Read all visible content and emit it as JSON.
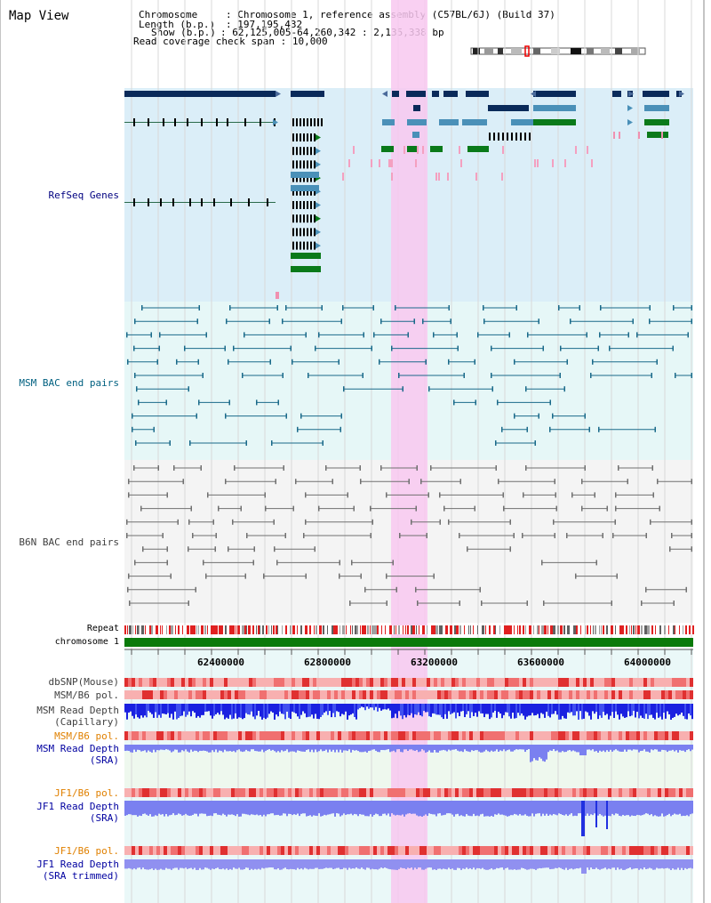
{
  "title": "Map View",
  "info": {
    "chromosome_key": "Chromosome",
    "chromosome_val": "Chromosome 1, reference assembly (C57BL/6J) (Build 37)",
    "length_key": "Length (b.p.)",
    "length_val": "197,195,432",
    "show_key": "Show (b.p.)",
    "show_val": "62,125,005-64,260,342 : 2,135,338 bp",
    "coverage_key": "Read coverage check span",
    "coverage_val": "10,000"
  },
  "tracks": {
    "refseq": "RefSeq Genes",
    "msm_bac": "MSM BAC end pairs",
    "b6n_bac": "B6N BAC end pairs",
    "repeat": "Repeat",
    "chromosome": "chromosome 1",
    "dbsnp": "dbSNP(Mouse)",
    "msm_b6_pol_1": "MSM/B6 pol.",
    "msm_read_depth_cap_1": "MSM Read Depth",
    "msm_read_depth_cap_2": "(Capillary)",
    "msm_b6_pol_2": "MSM/B6 pol.",
    "msm_read_depth_sra_1": "MSM Read Depth",
    "msm_read_depth_sra_2": "(SRA)",
    "jf1_b6_pol_1": "JF1/B6 pol.",
    "jf1_read_depth_sra_1": "JF1 Read Depth",
    "jf1_read_depth_sra_2": "(SRA)",
    "jf1_b6_pol_2": "JF1/B6 pol.",
    "jf1_read_depth_trim_1": "JF1 Read Depth",
    "jf1_read_depth_trim_2": "(SRA trimmed)"
  },
  "axis_ticks": [
    "62400000",
    "62800000",
    "63200000",
    "63600000",
    "64000000"
  ],
  "colors": {
    "refseq_bg": "#dbeef8",
    "bac_bg": "#e6f7f7",
    "highlight": "#f8c8f0",
    "gene_dark": "#0a2a5a",
    "gene_teal": "#4a90b8",
    "gene_green": "#0a7a1a",
    "chromosome_bar": "#0a7a0a",
    "refseq_label": "#000080",
    "msm_label": "#006080",
    "b6n_label": "#404040",
    "pol_orange": "#e08000",
    "depth_blue": "#1020d0"
  }
}
